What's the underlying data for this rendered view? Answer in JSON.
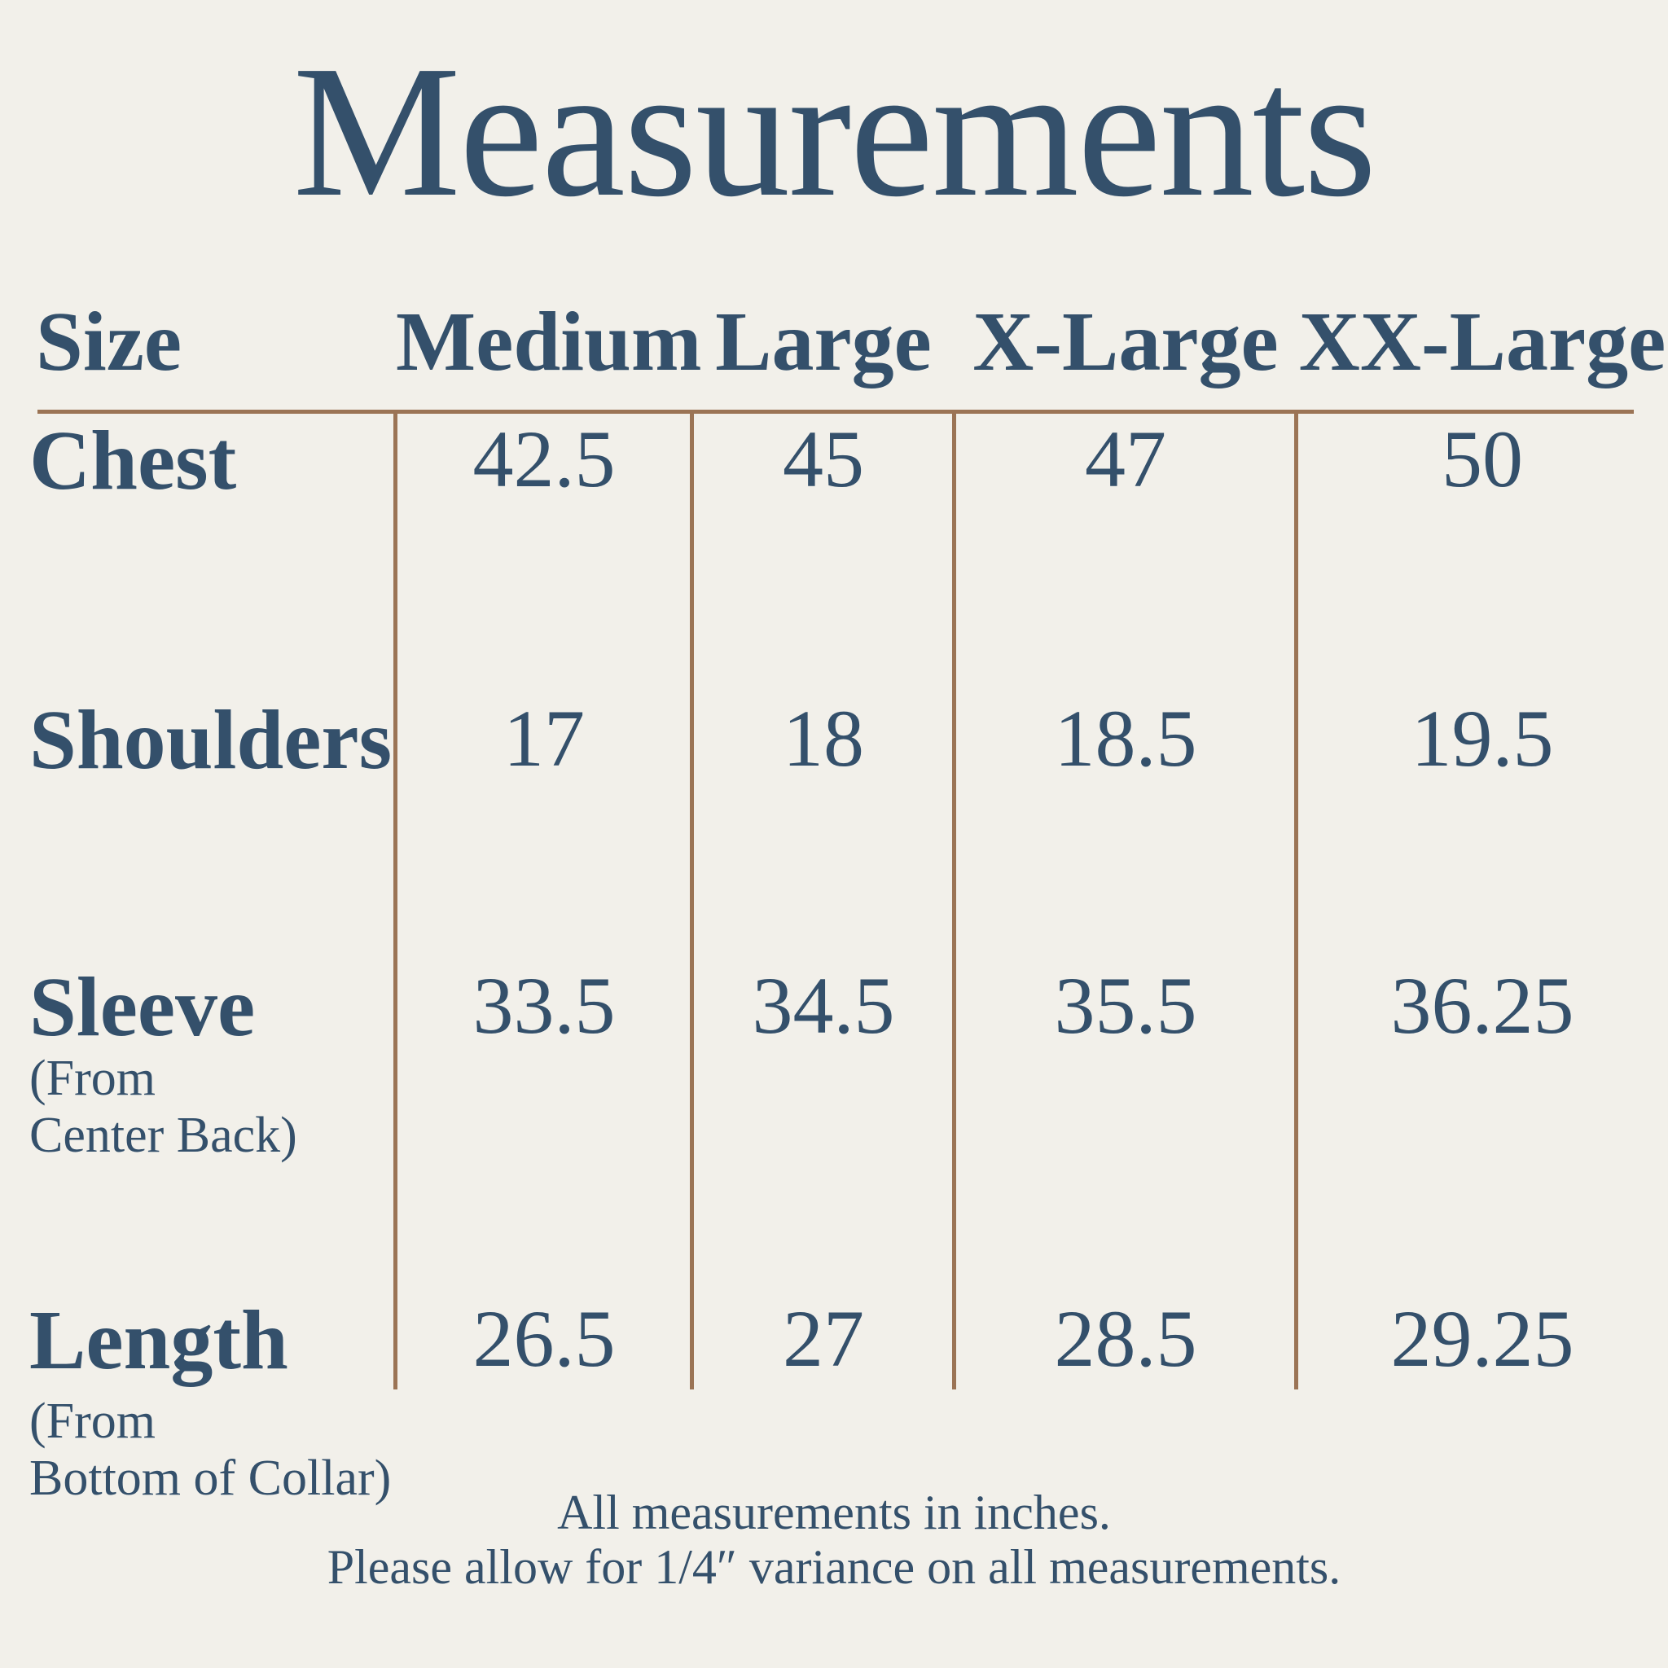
{
  "title": "Measurements",
  "chart_data": {
    "type": "table",
    "title": "Measurements",
    "units": "inches",
    "header": {
      "size_label": "Size",
      "columns": [
        "Medium",
        "Large",
        "X-Large",
        "XX-Large"
      ]
    },
    "rows": [
      {
        "label": "Chest",
        "sublabel_lines": [],
        "values": [
          "42.5",
          "45",
          "47",
          "50"
        ]
      },
      {
        "label": "Shoulders",
        "sublabel_lines": [],
        "values": [
          "17",
          "18",
          "18.5",
          "19.5"
        ]
      },
      {
        "label": "Sleeve",
        "sublabel_lines": [
          "(From",
          "Center Back)"
        ],
        "values": [
          "33.5",
          "34.5",
          "35.5",
          "36.25"
        ]
      },
      {
        "label": "Length",
        "sublabel_lines": [
          "(From",
          "Bottom of Collar)"
        ],
        "values": [
          "26.5",
          "27",
          "28.5",
          "29.25"
        ]
      }
    ],
    "footnotes": [
      "All measurements in inches.",
      "Please allow for 1/4″ variance on all measurements."
    ]
  },
  "footer": {
    "line1": "All measurements in inches.",
    "line2": "Please allow for 1/4″ variance on all measurements."
  },
  "colors": {
    "text_navy": "#34506b",
    "rule_brown": "#9b7455",
    "background": "#f2f0ea"
  }
}
